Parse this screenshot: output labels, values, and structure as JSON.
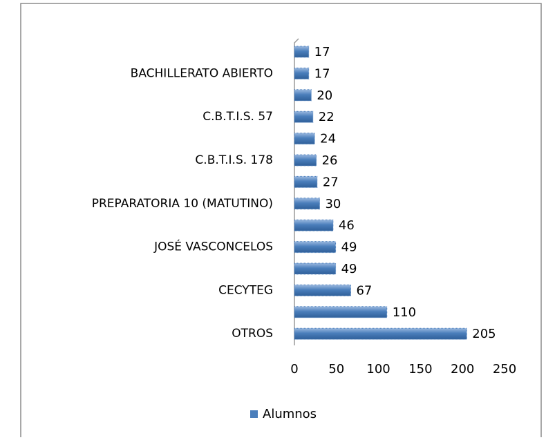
{
  "chart_data": {
    "type": "bar",
    "orientation": "horizontal",
    "categories": [
      null,
      "BACHILLERATO ABIERTO",
      null,
      "C.B.T.I.S. 57",
      null,
      "C.B.T.I.S. 178",
      null,
      "PREPARATORIA 10 (MATUTINO)",
      null,
      "JOSÉ VASCONCELOS",
      null,
      "CECYTEG",
      null,
      "OTROS"
    ],
    "series": [
      {
        "name": "Alumnos",
        "color": "#4a7ebb",
        "values": [
          17,
          17,
          20,
          22,
          24,
          26,
          27,
          30,
          46,
          49,
          49,
          67,
          110,
          205
        ]
      }
    ],
    "xlim": [
      0,
      250
    ],
    "xticks": [
      0,
      50,
      100,
      150,
      200,
      250
    ],
    "grid": false,
    "legend": "bottom"
  }
}
